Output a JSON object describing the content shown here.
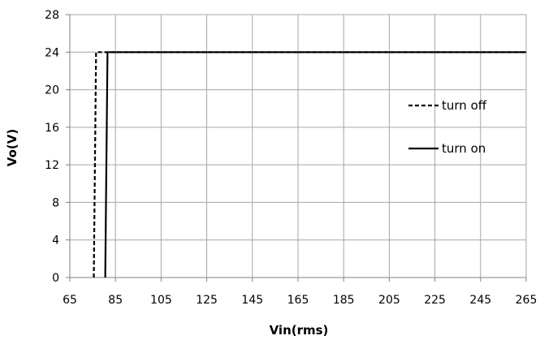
{
  "chart_data": {
    "type": "line",
    "title": "",
    "xlabel": "Vin(rms)",
    "ylabel": "Vo(V)",
    "xlim": [
      65,
      265
    ],
    "ylim": [
      0,
      28
    ],
    "xticks": [
      "65",
      "85",
      "105",
      "125",
      "145",
      "165",
      "185",
      "205",
      "225",
      "245",
      "265"
    ],
    "yticks": [
      "0",
      "4",
      "8",
      "12",
      "16",
      "20",
      "24",
      "28"
    ],
    "grid": true,
    "legend_position": "right",
    "series": [
      {
        "name": "turn off",
        "style": "dashed",
        "color": "#000000",
        "x": [
          75.5,
          76.5,
          265
        ],
        "y": [
          0,
          24,
          24
        ]
      },
      {
        "name": "turn on",
        "style": "solid",
        "color": "#000000",
        "x": [
          80.5,
          81.5,
          265
        ],
        "y": [
          0,
          24,
          24
        ]
      }
    ]
  }
}
